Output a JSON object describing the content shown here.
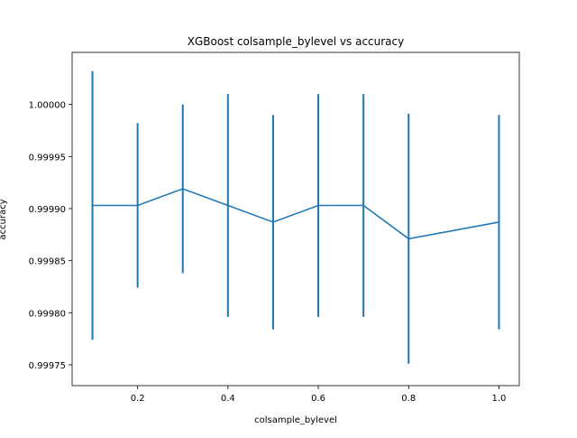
{
  "chart_data": {
    "type": "line",
    "title": "XGBoost colsample_bylevel vs accuracy",
    "xlabel": "colsample_bylevel",
    "ylabel": "accuracy",
    "xlim": [
      0.055,
      1.045
    ],
    "ylim": [
      0.99973,
      1.00005
    ],
    "xticks": [
      0.2,
      0.4,
      0.6,
      0.8,
      1.0
    ],
    "xtick_labels": [
      "0.2",
      "0.4",
      "0.6",
      "0.8",
      "1.0"
    ],
    "yticks": [
      0.99975,
      0.9998,
      0.99985,
      0.9999,
      0.99995,
      1.0
    ],
    "ytick_labels": [
      "0.99975",
      "0.99980",
      "0.99985",
      "0.99990",
      "0.99995",
      "1.00000"
    ],
    "grid": false,
    "color": "#1f77b4",
    "x": [
      0.1,
      0.2,
      0.3,
      0.4,
      0.5,
      0.6,
      0.7,
      0.8,
      1.0
    ],
    "y": [
      0.999903,
      0.999903,
      0.999919,
      0.999903,
      0.999887,
      0.999903,
      0.999903,
      0.999871,
      0.999887
    ],
    "yerr": [
      0.000129,
      7.9e-05,
      8.1e-05,
      0.000107,
      0.000103,
      0.000107,
      0.000107,
      0.00012,
      0.000103
    ]
  }
}
